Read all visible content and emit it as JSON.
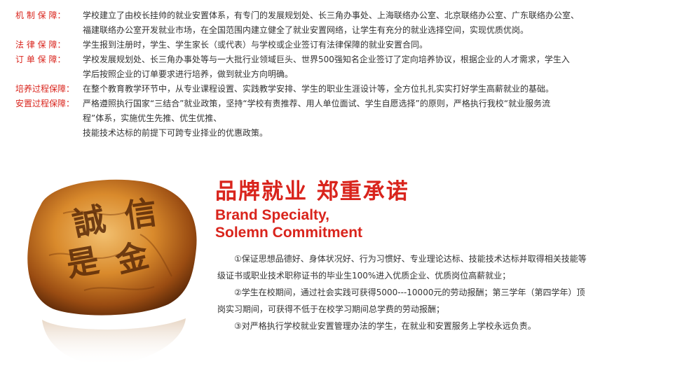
{
  "guarantees": [
    {
      "label": "机 制 保 障：",
      "lines": [
        "学校建立了由校长挂帅的就业安置体系，有专门的发展规划处、长三角办事处、上海联络办公室、北京联络办公室、广东联络办公室、",
        "福建联络办公室开发就业市场，在全国范围内建立健全了就业安置网络，让学生有充分的就业选择空间，实现优质优岗。"
      ]
    },
    {
      "label": "法 律 保 障：",
      "lines": [
        "学生报到注册时，学生、学生家长（或代表）与学校或企业签订有法律保障的就业安置合同。"
      ]
    },
    {
      "label": "订 单 保 障：",
      "lines": [
        "学校发展规划处、长三角办事处等与一大批行业领域巨头、世界500强知名企业签订了定向培养协议，根据企业的人才需求，学生入",
        "学后按照企业的订单要求进行培养，做到就业方向明确。"
      ]
    },
    {
      "label": "培养过程保障：",
      "lines": [
        "在整个教育教学环节中，从专业课程设置、实践教学安排、学生的职业生涯设计等，全方位扎扎实实打好学生高薪就业的基础。"
      ]
    },
    {
      "label": "安置过程保障：",
      "lines": [
        "严格遵照执行国家“三结合”就业政策，坚持“学校有责推荐、用人单位面试、学生自愿选择”的原则，严格执行我校“就业服务流",
        " 程”体系，实施优生先推、优生优推、",
        "技能技术达标的前提下可跨专业择业的优惠政策。"
      ]
    }
  ],
  "stone": {
    "chars": [
      "誠",
      "信",
      "是",
      "金"
    ]
  },
  "headline": {
    "cn": "品牌就业  郑重承诺",
    "en_line1": "Brand Specialty,",
    "en_line2": "Solemn Commitment"
  },
  "promises": {
    "line1": "①保证思想品德好、身体状况好、行为习惯好、专业理论达标、技能技术达标并取得相关技能等",
    "line2": "级证书或职业技术职称证书的毕业生100%进入优质企业、优质岗位高薪就业；",
    "line3": "②学生在校期间，通过社会实践可获得5000---10000元的劳动报酬；第三学年（第四学年）顶",
    "line4": "岗实习期间，可获得不低于在校学习期间总学费的劳动报酬；",
    "line5": "③对严格执行学校就业安置管理办法的学生，在就业和安置服务上学校永远负责。"
  },
  "colors": {
    "accent_red": "#d9241c",
    "body_text": "#333333",
    "stone_amber": "#c8741c"
  }
}
